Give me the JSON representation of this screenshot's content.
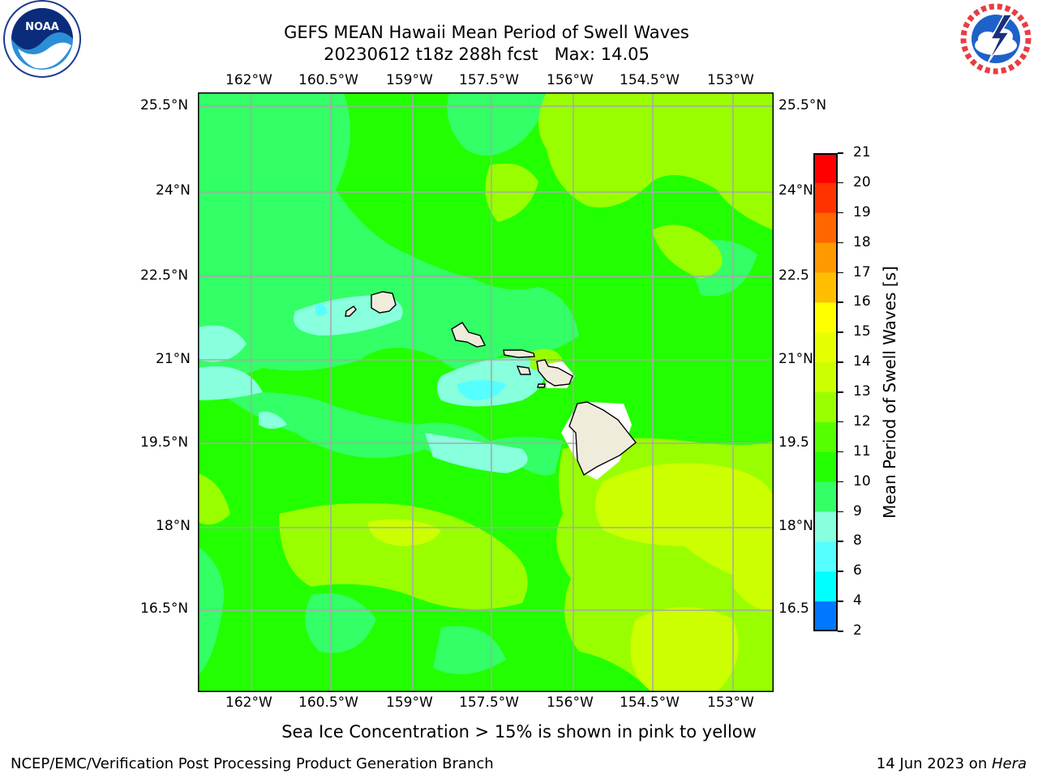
{
  "title": {
    "line1": "GEFS MEAN Hawaii Mean Period of Swell Waves",
    "line2": "20230612 t18z 288h fcst   Max: 14.05"
  },
  "map": {
    "lon_labels": [
      "162°W",
      "160.5°W",
      "159°W",
      "157.5°W",
      "156°W",
      "154.5°W",
      "153°W"
    ],
    "lat_labels": [
      "25.5°N",
      "24°N",
      "22.5°N",
      "21°N",
      "19.5°N",
      "18°N",
      "16.5°N"
    ],
    "lat_labels_right": [
      "25.5°N",
      "24°N",
      "22.5",
      "21°N",
      "19.5",
      "18°N",
      "16.5"
    ],
    "islands": [
      "Kauai",
      "Niihau",
      "Oahu",
      "Molokai",
      "Lanai",
      "Maui",
      "Kahoolawe",
      "Hawaii"
    ]
  },
  "colorbar": {
    "label": "Mean Period of Swell Waves [s]",
    "ticks": [
      "21",
      "20",
      "19",
      "18",
      "17",
      "16",
      "15",
      "14",
      "13",
      "12",
      "11",
      "10",
      "9",
      "8",
      "6",
      "4",
      "2"
    ],
    "colors": [
      "#ff0000",
      "#ff3300",
      "#ff6600",
      "#ff9900",
      "#ffbf00",
      "#ffff00",
      "#e5ff00",
      "#ccff00",
      "#99ff00",
      "#55ff00",
      "#22ff00",
      "#33ff66",
      "#88ffdd",
      "#55ffff",
      "#00ffff",
      "#0077ff",
      "#0000ff"
    ]
  },
  "caption": "Sea Ice Concentration > 15% is shown in pink to yellow",
  "footer": {
    "left": "NCEP/EMC/Verification Post Processing Product Generation Branch",
    "right_prefix": "14 Jun 2023 on ",
    "right_host": "Hera"
  },
  "logos": {
    "noaa_text": "NOAA",
    "noaa_ring": "NATIONAL OCEANIC AND ATMOSPHERIC ADMINISTRATION · U.S. DEPARTMENT OF COMMERCE",
    "nws_ring": "NATIONAL WEATHER SERVICE"
  }
}
